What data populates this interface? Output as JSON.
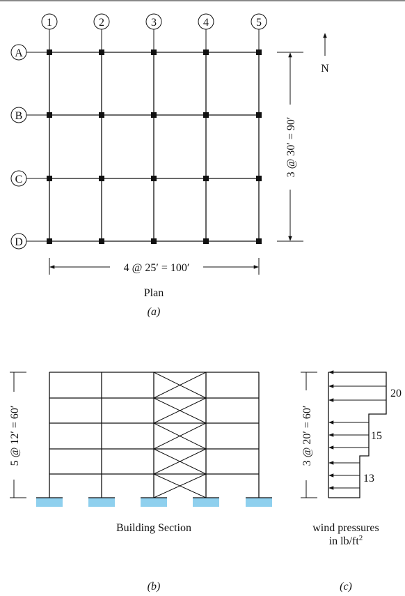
{
  "plan": {
    "column_lines": [
      "1",
      "2",
      "3",
      "4",
      "5"
    ],
    "row_lines": [
      "A",
      "B",
      "C",
      "D"
    ],
    "north_label": "N",
    "dim_horizontal": "4 @ 25′ = 100′",
    "dim_vertical": "3 @ 30′ = 90′",
    "title": "Plan",
    "label": "(a)"
  },
  "section": {
    "dim_vertical": "5 @ 12′ = 60′",
    "title": "Building Section",
    "label": "(b)"
  },
  "wind": {
    "dim_vertical": "3 @ 20′ = 60′",
    "pressures": [
      "20",
      "15",
      "13"
    ],
    "title_line1": "wind pressures",
    "title_line2_prefix": "in lb/ft",
    "title_line2_sup": "2",
    "label": "(c)"
  },
  "colors": {
    "line": "#111111",
    "footing": "#8fd0ee"
  }
}
